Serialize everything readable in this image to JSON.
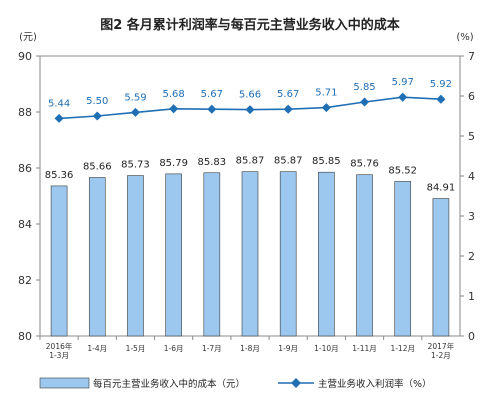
{
  "chart_data": {
    "type": "bar",
    "title": "图2  各月累计利润率与每百元主营业务收入中的成本",
    "left_axis": {
      "unit": "(元)",
      "ylim": [
        80,
        90
      ],
      "ticks": [
        "80",
        "82",
        "84",
        "86",
        "88",
        "90"
      ]
    },
    "right_axis": {
      "unit": "(%)",
      "ylim": [
        0,
        7
      ],
      "ticks": [
        "0",
        "1",
        "2",
        "3",
        "4",
        "5",
        "6",
        "7"
      ]
    },
    "categories": [
      [
        "2016年",
        "1-3月"
      ],
      [
        "1-4月"
      ],
      [
        "1-5月"
      ],
      [
        "1-6月"
      ],
      [
        "1-7月"
      ],
      [
        "1-8月"
      ],
      [
        "1-9月"
      ],
      [
        "1-10月"
      ],
      [
        "1-11月"
      ],
      [
        "1-12月"
      ],
      [
        "2017年",
        "1-2月"
      ]
    ],
    "series": [
      {
        "name": "每百元主营业务收入中的成本（元）",
        "type": "bar",
        "axis": "left",
        "color": "#9cc8ef",
        "values": [
          85.36,
          85.66,
          85.73,
          85.79,
          85.83,
          85.87,
          85.87,
          85.85,
          85.76,
          85.52,
          84.91
        ],
        "labels": [
          "85.36",
          "85.66",
          "85.73",
          "85.79",
          "85.83",
          "85.87",
          "85.87",
          "85.85",
          "85.76",
          "85.52",
          "84.91"
        ]
      },
      {
        "name": "主营业务收入利润率（%）",
        "type": "line",
        "axis": "right",
        "color": "#1f6fb5",
        "values": [
          5.44,
          5.5,
          5.59,
          5.68,
          5.67,
          5.66,
          5.67,
          5.71,
          5.85,
          5.97,
          5.92
        ],
        "labels": [
          "5.44",
          "5.50",
          "5.59",
          "5.68",
          "5.67",
          "5.66",
          "5.67",
          "5.71",
          "5.85",
          "5.97",
          "5.92"
        ]
      }
    ],
    "grid": false,
    "legend": "bottom"
  }
}
